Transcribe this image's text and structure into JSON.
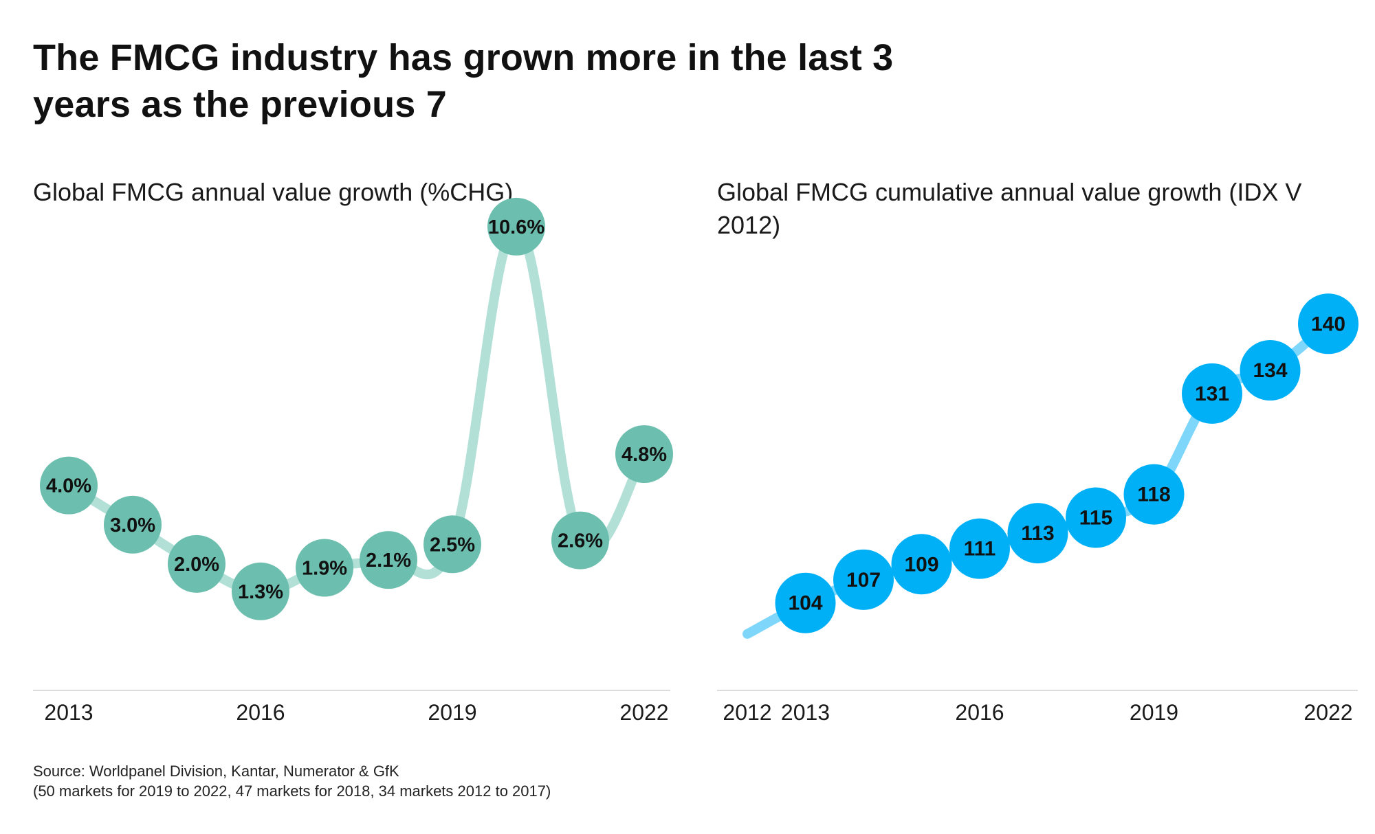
{
  "title": "The FMCG  industry has grown more in the last 3 years as the previous 7",
  "source": {
    "line1": "Source: Worldpanel Division, Kantar, Numerator & GfK",
    "line2": "(50 markets for 2019 to 2022, 47 markets for 2018, 34 markets 2012 to 2017)"
  },
  "colors": {
    "left_marker": "#6cbfae",
    "left_line": "#b2e0d7",
    "right_marker": "#00b0f7",
    "right_line": "#7ed6fa",
    "axis": "#dcdcdc"
  },
  "chart_data": [
    {
      "type": "line",
      "title": "Global FMCG annual value growth  (%CHG)",
      "xlabel": "",
      "ylabel": "",
      "x": [
        2013,
        2014,
        2015,
        2016,
        2017,
        2018,
        2019,
        2020,
        2021,
        2022
      ],
      "values": [
        4.0,
        3.0,
        2.0,
        1.3,
        1.9,
        2.1,
        2.5,
        10.6,
        2.6,
        4.8
      ],
      "data_labels": [
        "4.0%",
        "3.0%",
        "2.0%",
        "1.3%",
        "1.9%",
        "2.1%",
        "2.5%",
        "10.6%",
        "2.6%",
        "4.8%"
      ],
      "x_tick_labels": [
        "2013",
        "2016",
        "2019",
        "2022"
      ],
      "ylim": [
        0,
        12
      ],
      "grid": false,
      "markers": "circles with value labels"
    },
    {
      "type": "line",
      "title": "Global FMCG cumulative annual value growth (IDX V 2012)",
      "xlabel": "",
      "ylabel": "",
      "x": [
        2012,
        2013,
        2014,
        2015,
        2016,
        2017,
        2018,
        2019,
        2020,
        2021,
        2022
      ],
      "values": [
        100,
        104,
        107,
        109,
        111,
        113,
        115,
        118,
        131,
        134,
        140
      ],
      "data_labels": [
        "",
        "104",
        "107",
        "109",
        "111",
        "113",
        "115",
        "118",
        "131",
        "134",
        "140"
      ],
      "x_tick_labels": [
        "2012",
        "2013",
        "2016",
        "2019",
        "2022"
      ],
      "ylim": [
        96,
        148
      ],
      "grid": false,
      "markers": "circles with value labels"
    }
  ]
}
